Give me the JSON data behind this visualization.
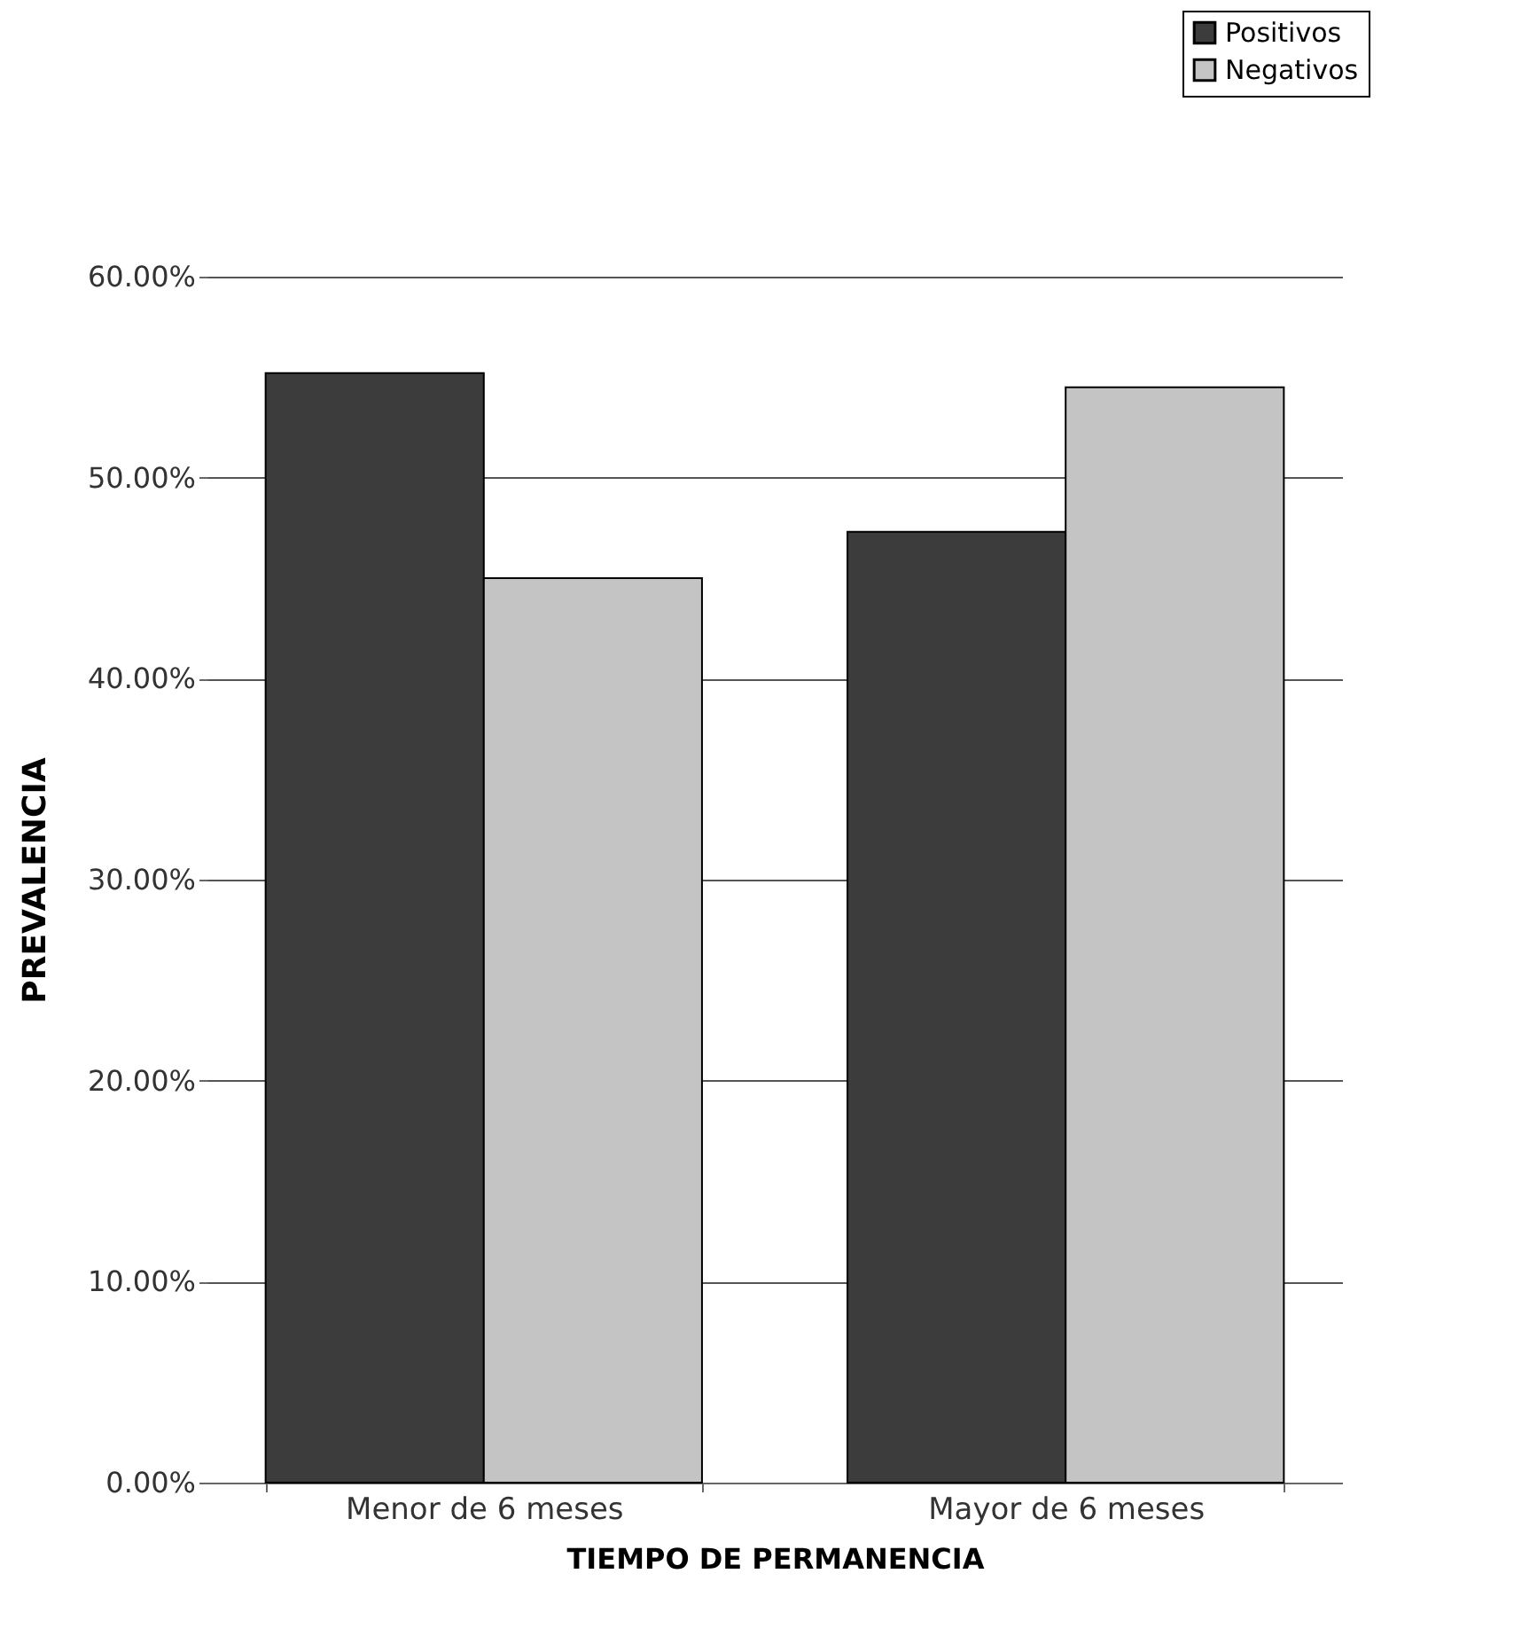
{
  "chart_data": {
    "type": "bar",
    "xlabel": "TIEMPO DE PERMANENCIA",
    "ylabel": "PREVALENCIA",
    "categories": [
      "Menor de 6 meses",
      "Mayor de 6 meses"
    ],
    "series": [
      {
        "name": "Positivos",
        "color": "#3c3c3c",
        "values": [
          55.2,
          47.3
        ]
      },
      {
        "name": "Negativos",
        "color": "#c4c4c4",
        "values": [
          45.0,
          54.5
        ]
      }
    ],
    "ylim": [
      0,
      60
    ],
    "yticks": [
      {
        "value": 0,
        "label": "0.00%"
      },
      {
        "value": 10,
        "label": "10.00%"
      },
      {
        "value": 20,
        "label": "20.00%"
      },
      {
        "value": 30,
        "label": "30.00%"
      },
      {
        "value": 40,
        "label": "40.00%"
      },
      {
        "value": 50,
        "label": "50.00%"
      },
      {
        "value": 60,
        "label": "60.00%"
      }
    ],
    "grid": "y",
    "legend": "top right"
  }
}
